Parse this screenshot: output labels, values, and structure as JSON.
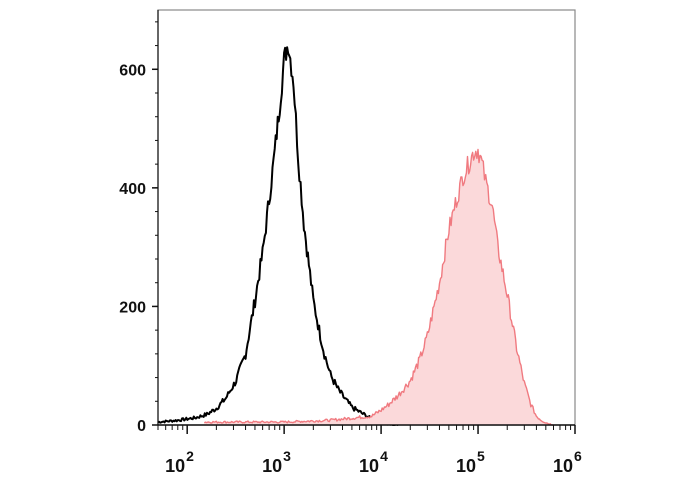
{
  "chart_data": {
    "type": "area",
    "x_scale": "log",
    "xlim": [
      50,
      1000000
    ],
    "ylim": [
      0,
      700
    ],
    "grid": false,
    "legend": "none",
    "title": "",
    "xlabel": "",
    "ylabel": "",
    "y_ticks": [
      {
        "value": 0,
        "label": "0"
      },
      {
        "value": 200,
        "label": "200"
      },
      {
        "value": 400,
        "label": "400"
      },
      {
        "value": 600,
        "label": "600"
      }
    ],
    "x_ticks": [
      {
        "value": 100,
        "base": "10",
        "exp": "2"
      },
      {
        "value": 1000,
        "base": "10",
        "exp": "3"
      },
      {
        "value": 10000,
        "base": "10",
        "exp": "4"
      },
      {
        "value": 100000,
        "base": "10",
        "exp": "5"
      },
      {
        "value": 1000000,
        "base": "10",
        "exp": "6"
      }
    ],
    "series": [
      {
        "style": "line",
        "color": "#000000",
        "x": [
          50,
          80,
          120,
          160,
          200,
          250,
          320,
          400,
          500,
          600,
          700,
          800,
          900,
          1000,
          1100,
          1250,
          1400,
          1600,
          1800,
          2000,
          2300,
          2600,
          3000,
          3600,
          4200,
          5000,
          6000,
          7000,
          8000,
          9000,
          10000,
          11000,
          12000,
          15000
        ],
        "y": [
          5,
          8,
          12,
          18,
          28,
          45,
          75,
          120,
          210,
          290,
          380,
          460,
          540,
          615,
          645,
          580,
          450,
          340,
          270,
          210,
          160,
          120,
          85,
          60,
          45,
          30,
          22,
          16,
          10,
          6,
          4,
          2,
          1,
          0
        ]
      },
      {
        "style": "filled",
        "color": "#f07a80",
        "fill": "#fbd9da",
        "x": [
          150,
          1000,
          3000,
          8000,
          10000,
          12000,
          15000,
          20000,
          25000,
          30000,
          40000,
          50000,
          60000,
          70000,
          80000,
          90000,
          100000,
          110000,
          120000,
          140000,
          160000,
          200000,
          250000,
          300000,
          350000,
          400000,
          450000,
          500000,
          600000
        ],
        "y": [
          5,
          5,
          8,
          15,
          25,
          35,
          50,
          75,
          110,
          150,
          240,
          330,
          380,
          420,
          440,
          460,
          465,
          440,
          410,
          370,
          300,
          220,
          130,
          70,
          35,
          15,
          8,
          4,
          0
        ]
      }
    ]
  }
}
